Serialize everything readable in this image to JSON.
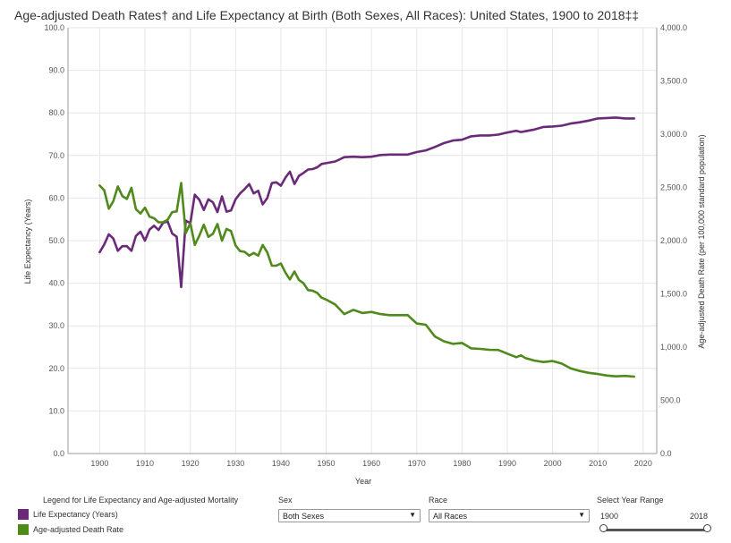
{
  "title": "Age-adjusted Death Rates† and Life Expectancy at Birth (Both Sexes, All Races): United States, 1900 to 2018‡‡",
  "chart_data": {
    "type": "line",
    "xlabel": "Year",
    "ylabel_left": "Life Expectancy (Years)",
    "ylabel_right": "Age-adjusted Death Rate (per 100,000 standard population)",
    "xlim": [
      1893,
      2023
    ],
    "ylim_left": [
      0,
      100
    ],
    "ylim_right": [
      0,
      4000
    ],
    "x_ticks": [
      1900,
      1910,
      1920,
      1930,
      1940,
      1950,
      1960,
      1970,
      1980,
      1990,
      2000,
      2010,
      2020
    ],
    "left_ticks": [
      "0.0",
      "10.0",
      "20.0",
      "30.0",
      "40.0",
      "50.0",
      "60.0",
      "70.0",
      "80.0",
      "90.0",
      "100.0"
    ],
    "right_ticks": [
      "0.0",
      "500.0",
      "1,000.0",
      "1,500.0",
      "2,000.0",
      "2,500.0",
      "3,000.0",
      "3,500.0",
      "4,000.0"
    ],
    "grid": true,
    "series": [
      {
        "name": "Life Expectancy (Years)",
        "axis": "left",
        "color": "#6b2a78",
        "x": [
          1900,
          1901,
          1902,
          1903,
          1904,
          1905,
          1906,
          1907,
          1908,
          1909,
          1910,
          1911,
          1912,
          1913,
          1914,
          1915,
          1916,
          1917,
          1918,
          1919,
          1920,
          1921,
          1922,
          1923,
          1924,
          1925,
          1926,
          1927,
          1928,
          1929,
          1930,
          1931,
          1932,
          1933,
          1934,
          1935,
          1936,
          1937,
          1938,
          1939,
          1940,
          1941,
          1942,
          1943,
          1944,
          1945,
          1946,
          1947,
          1948,
          1949,
          1950,
          1952,
          1954,
          1956,
          1958,
          1960,
          1962,
          1964,
          1966,
          1968,
          1970,
          1972,
          1974,
          1976,
          1978,
          1980,
          1982,
          1984,
          1986,
          1988,
          1990,
          1992,
          1993,
          1994,
          1996,
          1998,
          2000,
          2002,
          2004,
          2006,
          2008,
          2010,
          2012,
          2014,
          2016,
          2018
        ],
        "values": [
          47.3,
          49.1,
          51.5,
          50.5,
          47.6,
          48.7,
          48.7,
          47.6,
          51.1,
          52.1,
          50.0,
          52.6,
          53.5,
          52.5,
          54.2,
          54.5,
          51.7,
          50.9,
          39.1,
          54.7,
          54.1,
          60.8,
          59.6,
          57.2,
          59.7,
          59.0,
          56.7,
          60.4,
          56.8,
          57.1,
          59.7,
          61.1,
          62.1,
          63.3,
          61.1,
          61.7,
          58.5,
          60.0,
          63.5,
          63.7,
          62.9,
          64.8,
          66.2,
          63.3,
          65.2,
          65.9,
          66.7,
          66.8,
          67.2,
          68.0,
          68.2,
          68.6,
          69.6,
          69.7,
          69.6,
          69.7,
          70.1,
          70.2,
          70.2,
          70.2,
          70.8,
          71.2,
          72.0,
          72.9,
          73.5,
          73.7,
          74.5,
          74.7,
          74.7,
          74.9,
          75.4,
          75.8,
          75.5,
          75.7,
          76.1,
          76.7,
          76.8,
          77.0,
          77.5,
          77.8,
          78.2,
          78.7,
          78.8,
          78.9,
          78.7,
          78.7
        ]
      },
      {
        "name": "Age-adjusted Death Rate",
        "axis": "right",
        "color": "#4f8a1b",
        "x": [
          1900,
          1901,
          1902,
          1903,
          1904,
          1905,
          1906,
          1907,
          1908,
          1909,
          1910,
          1911,
          1912,
          1913,
          1914,
          1915,
          1916,
          1917,
          1918,
          1919,
          1920,
          1921,
          1922,
          1923,
          1924,
          1925,
          1926,
          1927,
          1928,
          1929,
          1930,
          1931,
          1932,
          1933,
          1934,
          1935,
          1936,
          1937,
          1938,
          1939,
          1940,
          1941,
          1942,
          1943,
          1944,
          1945,
          1946,
          1947,
          1948,
          1949,
          1950,
          1952,
          1954,
          1956,
          1958,
          1960,
          1962,
          1964,
          1966,
          1968,
          1970,
          1972,
          1974,
          1976,
          1978,
          1980,
          1982,
          1984,
          1986,
          1988,
          1990,
          1992,
          1993,
          1994,
          1996,
          1998,
          2000,
          2002,
          2004,
          2006,
          2008,
          2010,
          2012,
          2014,
          2016,
          2018
        ],
        "values": [
          2518,
          2473,
          2300,
          2370,
          2509,
          2419,
          2392,
          2497,
          2296,
          2255,
          2310,
          2226,
          2210,
          2172,
          2173,
          2196,
          2268,
          2275,
          2542,
          2070,
          2165,
          1960,
          2047,
          2150,
          2035,
          2065,
          2156,
          2000,
          2110,
          2090,
          1955,
          1902,
          1895,
          1860,
          1885,
          1860,
          1960,
          1890,
          1765,
          1765,
          1785,
          1700,
          1635,
          1710,
          1630,
          1600,
          1535,
          1530,
          1510,
          1465,
          1446,
          1400,
          1310,
          1350,
          1320,
          1330,
          1310,
          1300,
          1300,
          1301,
          1222,
          1210,
          1100,
          1055,
          1030,
          1039,
          988,
          983,
          975,
          973,
          939,
          905,
          923,
          897,
          873,
          860,
          869,
          845,
          800,
          776,
          758,
          747,
          733,
          725,
          729,
          723
        ]
      }
    ]
  },
  "legend": {
    "title": "Legend for Life Expectancy and Age-adjusted Mortality",
    "items": [
      {
        "label": "Life Expectancy (Years)",
        "color": "#6b2a78"
      },
      {
        "label": "Age-adjusted Death Rate",
        "color": "#4f8a1b"
      }
    ]
  },
  "controls": {
    "sex": {
      "label": "Sex",
      "value": "Both Sexes"
    },
    "race": {
      "label": "Race",
      "value": "All Races"
    },
    "year_range": {
      "label": "Select Year Range",
      "start": "1900",
      "end": "2018"
    }
  },
  "colors": {
    "grid": "#e6e6e6",
    "axis": "#999999"
  }
}
